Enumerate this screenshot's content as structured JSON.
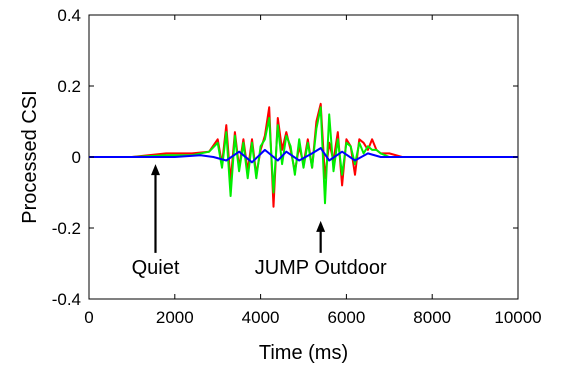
{
  "chart_data": {
    "type": "line",
    "xlabel": "Time (ms)",
    "ylabel": "Processed CSI",
    "xlim": [
      0,
      10000
    ],
    "ylim": [
      -0.4,
      0.4
    ],
    "x_ticks": [
      0,
      2000,
      4000,
      6000,
      8000,
      10000
    ],
    "x_tick_labels": [
      "0",
      "2000",
      "4000",
      "6000",
      "8000",
      "10000"
    ],
    "y_ticks": [
      0.4,
      0.2,
      0,
      -0.2,
      -0.4
    ],
    "y_tick_labels": [
      "0.4",
      "0.2",
      "0",
      "-0.2",
      "-0.4"
    ],
    "grid": false,
    "series": [
      {
        "color": "#ff0000",
        "x": [
          0,
          1000,
          1800,
          2400,
          2800,
          3000,
          3100,
          3200,
          3300,
          3400,
          3500,
          3600,
          3700,
          3800,
          3900,
          4000,
          4100,
          4200,
          4300,
          4400,
          4500,
          4600,
          4700,
          4800,
          4900,
          5000,
          5100,
          5200,
          5300,
          5400,
          5500,
          5600,
          5700,
          5800,
          5900,
          6000,
          6100,
          6200,
          6300,
          6400,
          6500,
          6600,
          6700,
          6800,
          7000,
          7300,
          8000,
          9000,
          10000
        ],
        "y": [
          0.0,
          0.0,
          0.01,
          0.01,
          0.015,
          0.05,
          -0.02,
          0.09,
          -0.07,
          0.07,
          -0.03,
          0.05,
          -0.04,
          0.05,
          -0.05,
          0.02,
          0.06,
          0.14,
          -0.14,
          0.11,
          0.02,
          0.07,
          0.02,
          -0.04,
          0.03,
          -0.02,
          0.05,
          -0.03,
          0.1,
          0.15,
          -0.06,
          0.04,
          -0.01,
          0.07,
          -0.08,
          0.05,
          0.03,
          -0.05,
          0.05,
          0.04,
          0.02,
          0.05,
          0.02,
          0.01,
          0.01,
          0.0,
          0.0,
          0.0,
          0.0
        ]
      },
      {
        "color": "#00ee00",
        "x": [
          0,
          1000,
          1800,
          2400,
          2800,
          3000,
          3100,
          3200,
          3300,
          3400,
          3500,
          3600,
          3700,
          3800,
          3900,
          4000,
          4100,
          4200,
          4300,
          4400,
          4500,
          4600,
          4700,
          4800,
          4900,
          5000,
          5100,
          5200,
          5300,
          5400,
          5500,
          5600,
          5700,
          5800,
          5900,
          6000,
          6100,
          6200,
          6300,
          6400,
          6500,
          6600,
          6700,
          6800,
          7000,
          7300,
          8000,
          9000,
          10000
        ],
        "y": [
          0.0,
          0.0,
          0.005,
          0.005,
          0.015,
          0.04,
          -0.03,
          0.07,
          -0.11,
          0.06,
          -0.04,
          0.04,
          -0.06,
          0.04,
          -0.06,
          0.03,
          0.05,
          0.11,
          -0.1,
          0.09,
          -0.02,
          0.06,
          0.03,
          -0.05,
          0.05,
          -0.03,
          0.04,
          -0.03,
          0.08,
          0.14,
          -0.13,
          0.12,
          -0.04,
          0.05,
          -0.05,
          0.04,
          0.03,
          -0.02,
          0.04,
          0.01,
          0.03,
          0.02,
          0.02,
          0.01,
          0.0,
          0.0,
          0.0,
          0.0,
          0.0
        ]
      },
      {
        "color": "#0000ff",
        "x": [
          0,
          1000,
          2000,
          2600,
          2900,
          3200,
          3500,
          3800,
          4100,
          4400,
          4600,
          4900,
          5200,
          5400,
          5600,
          5900,
          6200,
          6500,
          6800,
          7200,
          8000,
          9000,
          10000
        ],
        "y": [
          0.0,
          0.0,
          0.0,
          0.005,
          0.0,
          -0.01,
          0.015,
          -0.015,
          0.02,
          -0.01,
          0.015,
          -0.01,
          0.01,
          0.025,
          -0.01,
          0.015,
          -0.01,
          0.01,
          0.0,
          0.0,
          0.0,
          0.0,
          0.0
        ]
      }
    ],
    "annotations": [
      {
        "text": "Quiet",
        "x": 1550,
        "y": -0.31,
        "arrow_from_y": -0.27,
        "arrow_to_y": -0.02
      },
      {
        "text": "JUMP Outdoor",
        "x": 5400,
        "y": -0.31,
        "arrow_from_y": -0.27,
        "arrow_to_y": -0.18
      }
    ]
  }
}
